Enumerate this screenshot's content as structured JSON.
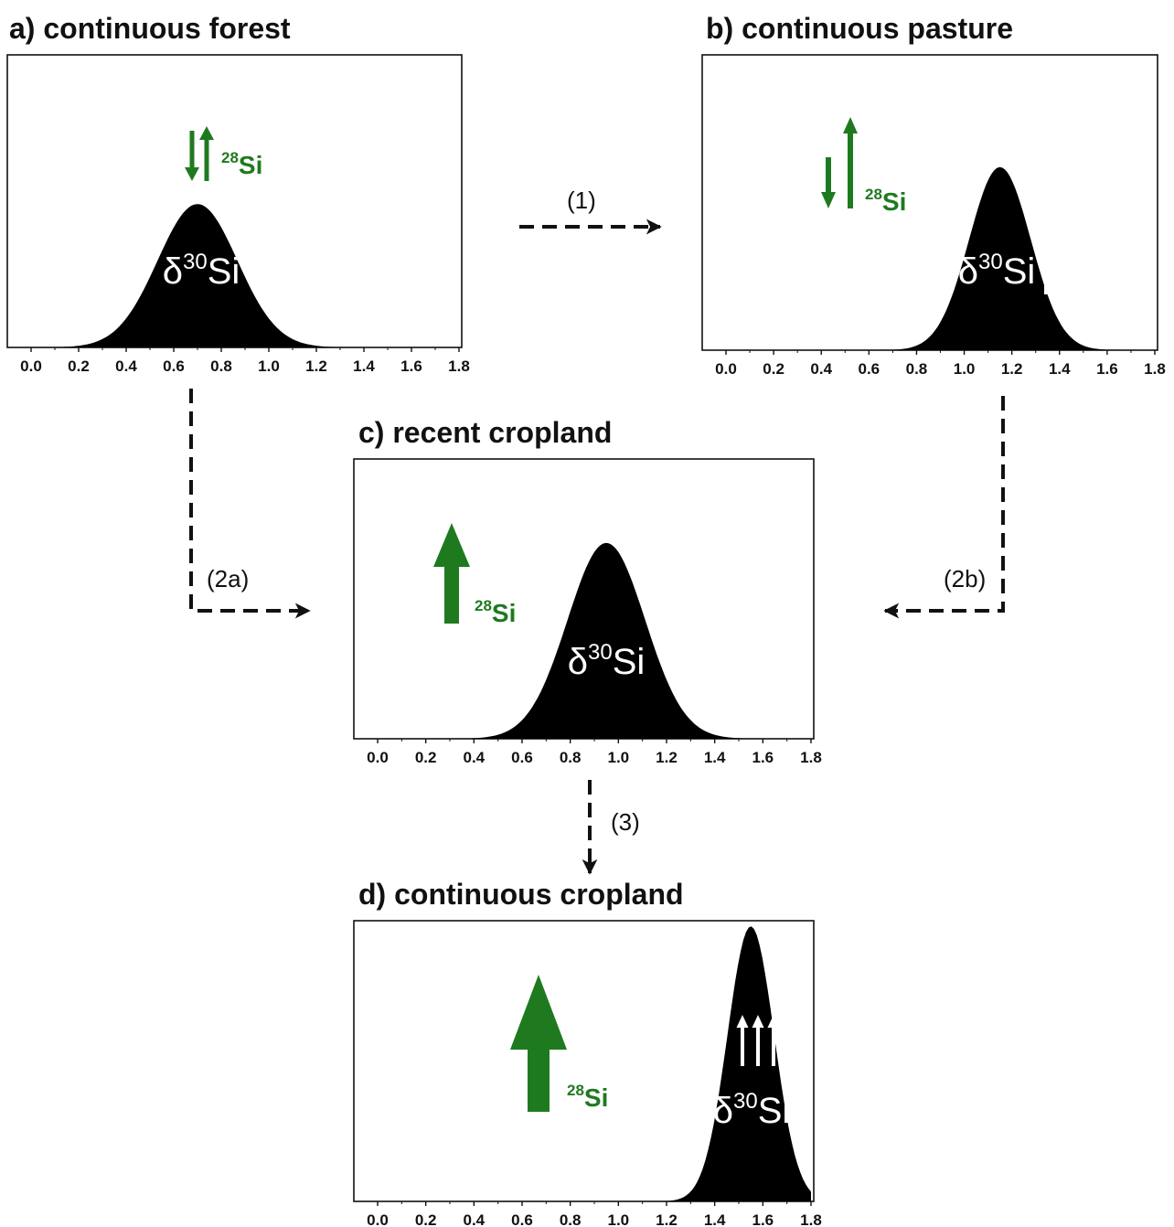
{
  "panels": [
    {
      "id": "a",
      "title": "a) continuous forest",
      "curve": {
        "mean": 0.7,
        "height_fraction": 0.49,
        "width": 0.26
      },
      "delta_label": {
        "prefix": "δ",
        "sup": "30",
        "suffix": "Si"
      },
      "si28_label": {
        "sup": "28",
        "text": "Si"
      },
      "green_arrows": [
        "down",
        "up"
      ],
      "white_arrows": 0
    },
    {
      "id": "b",
      "title": "b) continuous pasture",
      "curve": {
        "mean": 1.15,
        "height_fraction": 0.62,
        "width": 0.2
      },
      "delta_label": {
        "prefix": "δ",
        "sup": "30",
        "suffix": "Si"
      },
      "si28_label": {
        "sup": "28",
        "text": "Si"
      },
      "green_arrows": [
        "down",
        "up"
      ],
      "white_arrows": 1
    },
    {
      "id": "c",
      "title": "c) recent cropland",
      "curve": {
        "mean": 0.95,
        "height_fraction": 0.7,
        "width": 0.25
      },
      "delta_label": {
        "prefix": "δ",
        "sup": "30",
        "suffix": "Si"
      },
      "si28_label": {
        "sup": "28",
        "text": "Si"
      },
      "green_arrows": [
        "up-large"
      ],
      "white_arrows": 0
    },
    {
      "id": "d",
      "title": "d) continuous cropland",
      "curve": {
        "mean": 1.55,
        "height_fraction": 0.98,
        "width": 0.15
      },
      "delta_label": {
        "prefix": "δ",
        "sup": "30",
        "suffix": "Si"
      },
      "si28_label": {
        "sup": "28",
        "text": "Si"
      },
      "green_arrows": [
        "up-xlarge"
      ],
      "white_arrows": 3
    }
  ],
  "x_ticks": [
    "0.0",
    "0.2",
    "0.4",
    "0.6",
    "0.8",
    "1.0",
    "1.2",
    "1.4",
    "1.6",
    "1.8"
  ],
  "x_range": [
    0.0,
    1.8
  ],
  "transitions": [
    {
      "id": "t1",
      "label": "(1)"
    },
    {
      "id": "t2a",
      "label": "(2a)"
    },
    {
      "id": "t2b",
      "label": "(2b)"
    },
    {
      "id": "t3",
      "label": "(3)"
    }
  ],
  "colors": {
    "curve": "#000000",
    "green": "#1f7a1f",
    "white": "#ffffff",
    "arrow": "#111111"
  }
}
